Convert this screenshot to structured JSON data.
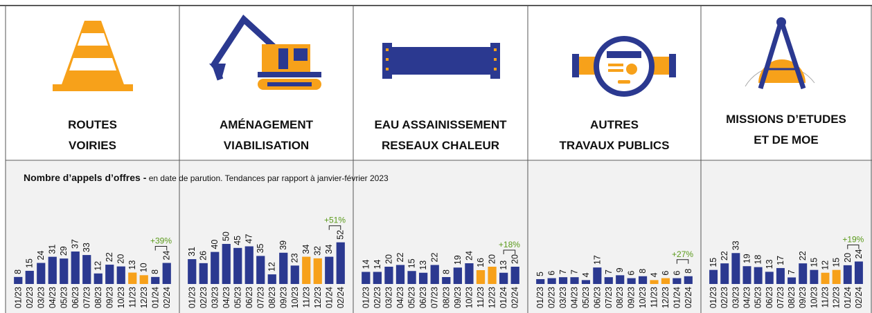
{
  "header": {
    "title": "Nombre d’appels d’offres -",
    "subtitle": "en date de parution. Tendances par rapport à janvier-février 2023"
  },
  "chart_data": [
    {
      "type": "bar",
      "title": [
        "ROUTES",
        "VOIRIES"
      ],
      "categories": [
        "01/23",
        "02/23",
        "03/23",
        "04/23",
        "05/23",
        "06/23",
        "07/23",
        "08/23",
        "09/23",
        "10/23",
        "11/23",
        "12/23",
        "01/24",
        "02/24"
      ],
      "values": [
        8,
        15,
        24,
        31,
        29,
        37,
        33,
        12,
        22,
        20,
        13,
        10,
        8,
        24
      ],
      "colors": [
        "#2b3990",
        "#2b3990",
        "#2b3990",
        "#2b3990",
        "#2b3990",
        "#2b3990",
        "#2b3990",
        "#2b3990",
        "#2b3990",
        "#2b3990",
        "#f7a11a",
        "#f7a11a",
        "#2b3990",
        "#2b3990"
      ],
      "ylim": [
        0,
        63
      ],
      "annotation": "+39%"
    },
    {
      "type": "bar",
      "title": [
        "AMÉNAGEMENT",
        "VIABILISATION"
      ],
      "categories": [
        "01/23",
        "02/23",
        "03/23",
        "04/23",
        "05/23",
        "06/23",
        "07/23",
        "08/23",
        "09/23",
        "10/23",
        "11/23",
        "12/23",
        "01/24",
        "02/24"
      ],
      "values": [
        31,
        26,
        40,
        50,
        45,
        47,
        35,
        12,
        39,
        23,
        34,
        32,
        34,
        52
      ],
      "colors": [
        "#2b3990",
        "#2b3990",
        "#2b3990",
        "#2b3990",
        "#2b3990",
        "#2b3990",
        "#2b3990",
        "#2b3990",
        "#2b3990",
        "#2b3990",
        "#f7a11a",
        "#f7a11a",
        "#2b3990",
        "#2b3990"
      ],
      "ylim": [
        0,
        69
      ],
      "annotation": "+51%"
    },
    {
      "type": "bar",
      "title": [
        "EAU ASSAINISSEMENT",
        "RESEAUX CHALEUR"
      ],
      "categories": [
        "01/23",
        "02/23",
        "03/23",
        "04/23",
        "05/23",
        "06/23",
        "07/23",
        "08/23",
        "09/23",
        "10/23",
        "11/23",
        "12/23",
        "01/24",
        "02/24"
      ],
      "values": [
        14,
        14,
        20,
        22,
        15,
        13,
        22,
        8,
        19,
        24,
        16,
        20,
        13,
        20
      ],
      "colors": [
        "#2b3990",
        "#2b3990",
        "#2b3990",
        "#2b3990",
        "#2b3990",
        "#2b3990",
        "#2b3990",
        "#2b3990",
        "#2b3990",
        "#2b3990",
        "#f7a11a",
        "#f7a11a",
        "#2b3990",
        "#2b3990"
      ],
      "ylim": [
        0,
        64
      ],
      "annotation": "+18%"
    },
    {
      "type": "bar",
      "title": [
        "AUTRES",
        "TRAVAUX PUBLICS"
      ],
      "categories": [
        "01/23",
        "02/23",
        "03/23",
        "04/23",
        "05/23",
        "06/23",
        "07/23",
        "08/23",
        "09/23",
        "10/23",
        "11/23",
        "12/23",
        "01/24",
        "02/24"
      ],
      "values": [
        5,
        6,
        7,
        7,
        4,
        17,
        7,
        9,
        6,
        8,
        4,
        6,
        6,
        8
      ],
      "colors": [
        "#2b3990",
        "#2b3990",
        "#2b3990",
        "#2b3990",
        "#2b3990",
        "#2b3990",
        "#2b3990",
        "#2b3990",
        "#2b3990",
        "#2b3990",
        "#f7a11a",
        "#f7a11a",
        "#2b3990",
        "#2b3990"
      ],
      "ylim": [
        0,
        57
      ],
      "annotation": "+27%"
    },
    {
      "type": "bar",
      "title": [
        "MISSIONS D’ETUDES",
        "ET DE MOE"
      ],
      "categories": [
        "01/23",
        "02/23",
        "03/23",
        "04/23",
        "05/23",
        "06/23",
        "07/23",
        "08/23",
        "09/23",
        "10/23",
        "11/23",
        "12/23",
        "01/24",
        "02/24"
      ],
      "values": [
        15,
        22,
        33,
        19,
        18,
        13,
        17,
        7,
        22,
        15,
        12,
        15,
        20,
        24
      ],
      "colors": [
        "#2b3990",
        "#2b3990",
        "#2b3990",
        "#2b3990",
        "#2b3990",
        "#2b3990",
        "#2b3990",
        "#2b3990",
        "#2b3990",
        "#2b3990",
        "#f7a11a",
        "#f7a11a",
        "#2b3990",
        "#2b3990"
      ],
      "ylim": [
        0,
        59
      ],
      "annotation": "+19%"
    }
  ]
}
